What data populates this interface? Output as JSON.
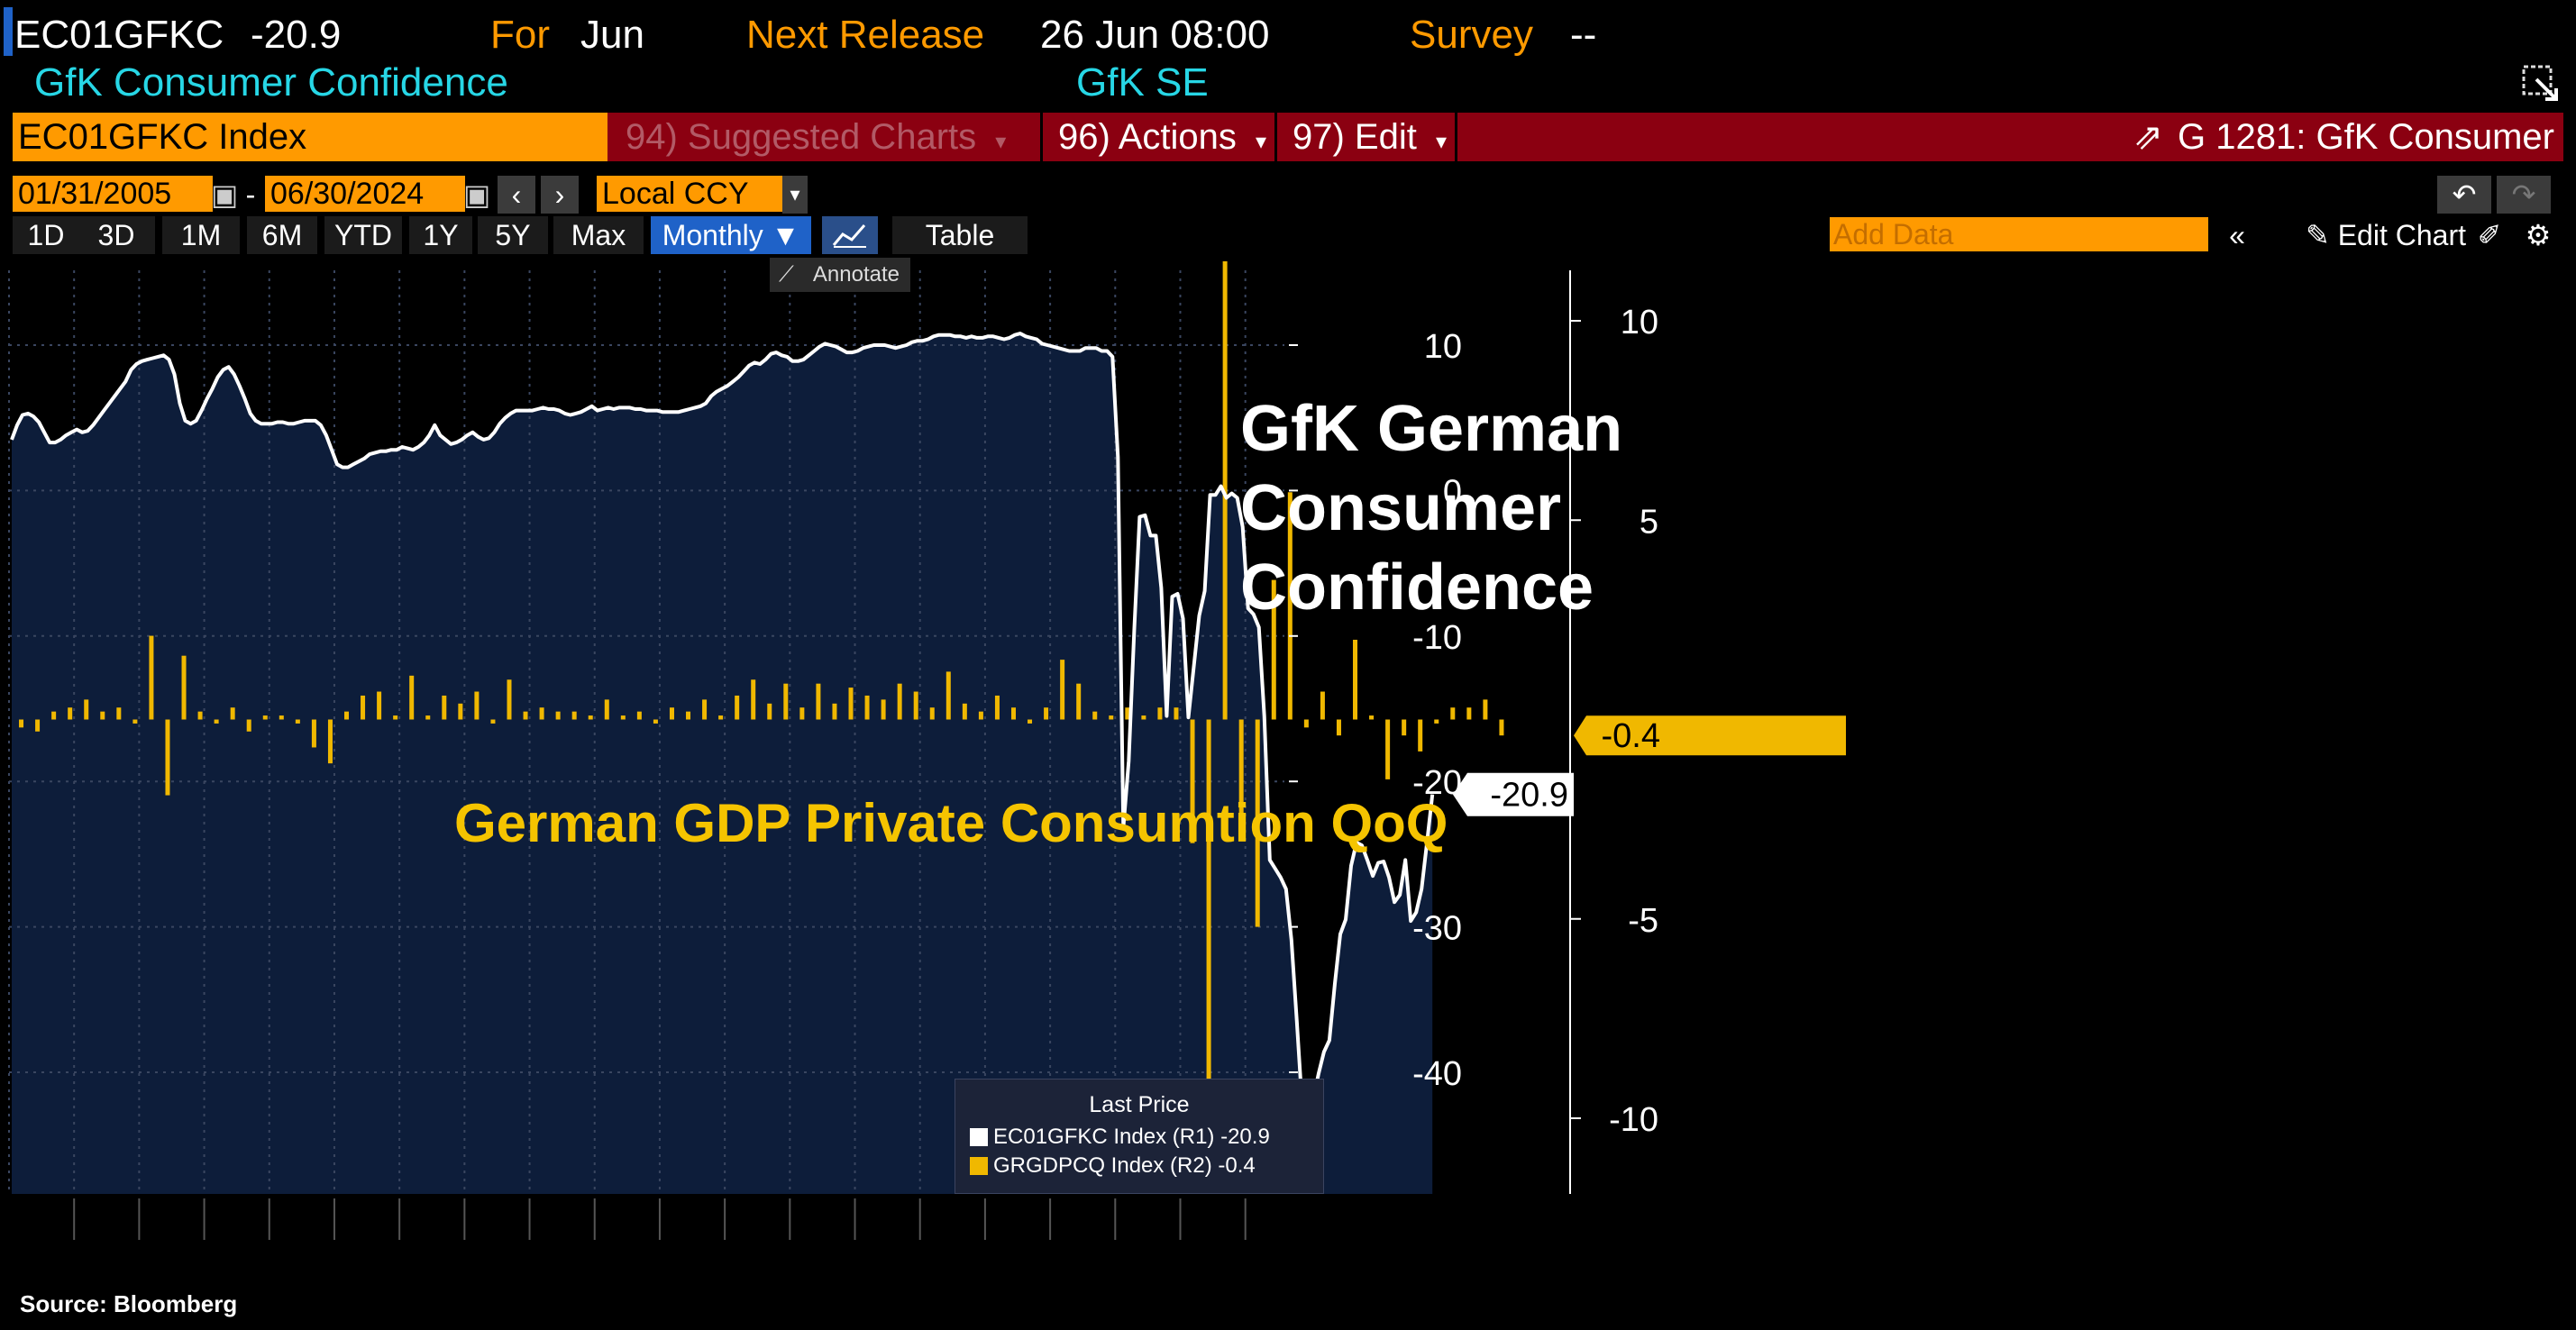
{
  "header": {
    "ticker": "EC01GFKC",
    "last_value": "-20.9",
    "for_label": "For",
    "for_value": "Jun",
    "next_release_label": "Next Release",
    "next_release_value": "26 Jun 08:00",
    "survey_label": "Survey",
    "survey_value": "--",
    "security_name": "GfK Consumer Confidence",
    "source_name": "GfK SE"
  },
  "command_bar": {
    "security_field": "EC01GFKC Index",
    "suggested_charts": "94) Suggested Charts",
    "actions": "96) Actions",
    "edit": "97) Edit",
    "chart_id": "G 1281: GfK Consumer"
  },
  "date_bar": {
    "start_date": "01/31/2005",
    "dash": "-",
    "end_date": "06/30/2024",
    "currency": "Local CCY"
  },
  "toolbar": {
    "ranges": [
      "1D",
      "3D",
      "1M",
      "6M",
      "YTD",
      "1Y",
      "5Y",
      "Max"
    ],
    "frequency": "Monthly ▼",
    "table_label": "Table",
    "add_data_placeholder": "Add Data",
    "edit_chart": "Edit Chart",
    "annotate": "Annotate"
  },
  "annotations": {
    "gfk_title_line1": "GfK German",
    "gfk_title_line2": "Consumer",
    "gfk_title_line3": "Confidence",
    "gdp_title": "German GDP Private Consumtion QoQ"
  },
  "legend": {
    "title": "Last Price",
    "series1": "EC01GFKC Index  (R1) -20.9",
    "series2": "GRGDPCQ Index  (R2)  -0.4"
  },
  "source": "Source: Bloomberg",
  "colors": {
    "gfk_line": "#ffffff",
    "gfk_fill": "#0d1d3a",
    "gdp_bars": "#f0b800",
    "orange": "#ff9a00",
    "red_bar": "#8b0011",
    "cyan_text": "#27d7e6",
    "highlight_blue": "#1f62c8"
  },
  "chart_data": [
    {
      "type": "area",
      "name": "EC01GFKC Index",
      "axis": "R1",
      "x_start": "2005-01",
      "frequency": "monthly",
      "ylim": [
        -47,
        16
      ],
      "yticks": [
        10,
        0,
        -10,
        -20,
        -30,
        -40
      ],
      "last_label": "-20.9",
      "values": [
        3.5,
        4.5,
        5.2,
        5.3,
        5.1,
        4.7,
        4.0,
        3.3,
        3.3,
        3.5,
        3.8,
        4.0,
        4.2,
        4.0,
        4.1,
        4.5,
        5.0,
        5.5,
        6.0,
        6.5,
        7.0,
        7.5,
        8.3,
        8.7,
        8.9,
        9.0,
        9.1,
        9.2,
        9.3,
        9.0,
        8.0,
        6.0,
        4.8,
        4.6,
        4.8,
        5.5,
        6.3,
        7.0,
        7.8,
        8.3,
        8.5,
        8.0,
        7.2,
        6.3,
        5.3,
        4.8,
        4.6,
        4.6,
        4.6,
        4.7,
        4.7,
        4.6,
        4.6,
        4.7,
        4.8,
        4.8,
        4.8,
        4.5,
        3.8,
        2.8,
        1.8,
        1.6,
        1.6,
        1.8,
        2.0,
        2.2,
        2.5,
        2.6,
        2.7,
        2.7,
        2.8,
        2.8,
        3.0,
        2.9,
        2.8,
        3.0,
        3.3,
        3.8,
        4.5,
        3.8,
        3.5,
        3.2,
        3.3,
        3.5,
        3.8,
        4.0,
        3.7,
        3.5,
        3.6,
        4.0,
        4.6,
        5.0,
        5.3,
        5.5,
        5.5,
        5.5,
        5.5,
        5.6,
        5.7,
        5.6,
        5.6,
        5.5,
        5.3,
        5.2,
        5.3,
        5.4,
        5.6,
        5.8,
        5.5,
        5.6,
        5.7,
        5.6,
        5.7,
        5.7,
        5.7,
        5.6,
        5.6,
        5.5,
        5.5,
        5.5,
        5.4,
        5.4,
        5.4,
        5.4,
        5.5,
        5.6,
        5.7,
        5.8,
        6.0,
        6.5,
        6.8,
        7.0,
        7.2,
        7.5,
        7.8,
        8.2,
        8.6,
        8.8,
        8.7,
        9.0,
        9.4,
        9.5,
        9.3,
        9.2,
        8.9,
        8.9,
        9.0,
        9.3,
        9.6,
        9.9,
        10.1,
        10.0,
        9.9,
        9.7,
        9.5,
        9.5,
        9.6,
        9.8,
        9.9,
        10.0,
        10.0,
        10.0,
        9.9,
        9.8,
        9.9,
        10.0,
        10.2,
        10.3,
        10.3,
        10.4,
        10.6,
        10.7,
        10.7,
        10.7,
        10.6,
        10.6,
        10.5,
        10.6,
        10.5,
        10.5,
        10.6,
        10.6,
        10.5,
        10.4,
        10.5,
        10.7,
        10.8,
        10.6,
        10.5,
        10.4,
        10.1,
        10.0,
        9.9,
        9.8,
        9.7,
        9.6,
        9.6,
        9.6,
        9.8,
        9.8,
        9.8,
        9.6,
        9.6,
        9.2,
        2.3,
        -23.2,
        -18.6,
        -9.6,
        -1.8,
        -1.7,
        -3.1,
        -3.1,
        -6.7,
        -15.5,
        -7.3,
        -7.1,
        -8.8,
        -15.6,
        -12.1,
        -8.6,
        -6.9,
        -0.3,
        -0.3,
        0.3,
        -0.5,
        -0.2,
        -0.5,
        -2.5,
        -8.1,
        -8.5,
        -9.4,
        -15.5,
        -25.4,
        -26.0,
        -26.6,
        -27.4,
        -30.9,
        -36.5,
        -42.5,
        -42.8,
        -41.9,
        -40.1,
        -38.6,
        -37.8,
        -33.9,
        -30.5,
        -29.5,
        -25.8,
        -24.2,
        -24.4,
        -25.4,
        -26.5,
        -25.6,
        -25.5,
        -26.6,
        -28.3,
        -27.8,
        -25.4,
        -29.6,
        -29.0,
        -27.4,
        -24.2,
        -20.9
      ]
    },
    {
      "type": "bar",
      "name": "GRGDPCQ Index",
      "axis": "R2",
      "x_start": "2005-Q1",
      "frequency": "quarterly",
      "ylim": [
        -11.7,
        12.3
      ],
      "yticks": [
        10,
        5,
        -5,
        -10
      ],
      "last_label": "-0.4",
      "values": [
        -0.2,
        -0.3,
        0.2,
        0.3,
        0.5,
        0.2,
        0.3,
        -0.1,
        2.1,
        -1.9,
        1.6,
        0.2,
        -0.1,
        0.3,
        -0.3,
        0.1,
        0.1,
        -0.1,
        -0.7,
        -1.1,
        0.2,
        0.6,
        0.7,
        0.1,
        1.1,
        0.1,
        0.6,
        0.4,
        0.7,
        -0.1,
        1.0,
        0.2,
        0.3,
        0.2,
        0.2,
        0.1,
        0.5,
        0.1,
        0.2,
        -0.1,
        0.3,
        0.2,
        0.5,
        0.1,
        0.6,
        1.0,
        0.4,
        0.9,
        0.3,
        0.9,
        0.4,
        0.8,
        0.6,
        0.5,
        0.9,
        0.7,
        0.3,
        1.2,
        0.4,
        0.2,
        0.6,
        0.3,
        -0.1,
        0.3,
        1.5,
        0.9,
        0.2,
        0.1,
        0.3,
        0.1,
        0.3,
        0.3,
        -3.1,
        -10.6,
        12.7,
        -2.6,
        -5.2,
        3.5,
        5.7,
        -0.2,
        0.7,
        -0.4,
        2.0,
        0.1,
        -1.5,
        -0.4,
        -0.8,
        -0.1,
        0.3,
        0.3,
        0.5,
        -0.4
      ]
    }
  ]
}
